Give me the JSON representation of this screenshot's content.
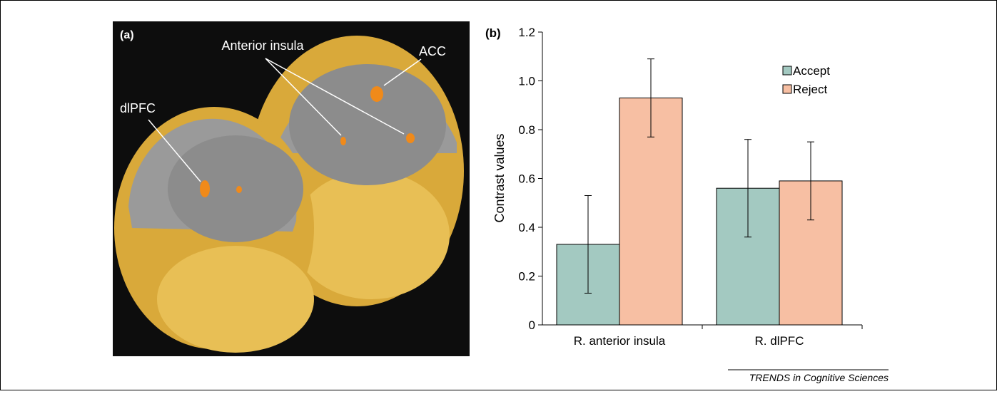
{
  "panel_a": {
    "label": "(a)",
    "annotations": [
      "Anterior insula",
      "ACC",
      "dlPFC"
    ]
  },
  "chart_data": {
    "type": "bar",
    "panel_label": "(b)",
    "ylabel": "Contrast values",
    "categories": [
      "R. anterior insula",
      "R. dlPFC"
    ],
    "series": [
      {
        "name": "Accept",
        "color": "#a3c9c1",
        "values": [
          0.33,
          0.56
        ],
        "errors": [
          0.2,
          0.2
        ]
      },
      {
        "name": "Reject",
        "color": "#f7bfa3",
        "values": [
          0.93,
          0.59
        ],
        "errors": [
          0.16,
          0.16
        ]
      }
    ],
    "ylim": [
      0,
      1.2
    ],
    "yticks": [
      0,
      0.2,
      0.4,
      0.6,
      0.8,
      {
        "value": 1,
        "label": "1.0"
      },
      1.2
    ],
    "grid": false,
    "legend": "upper right"
  },
  "footer": "TRENDS in Cognitive Sciences"
}
